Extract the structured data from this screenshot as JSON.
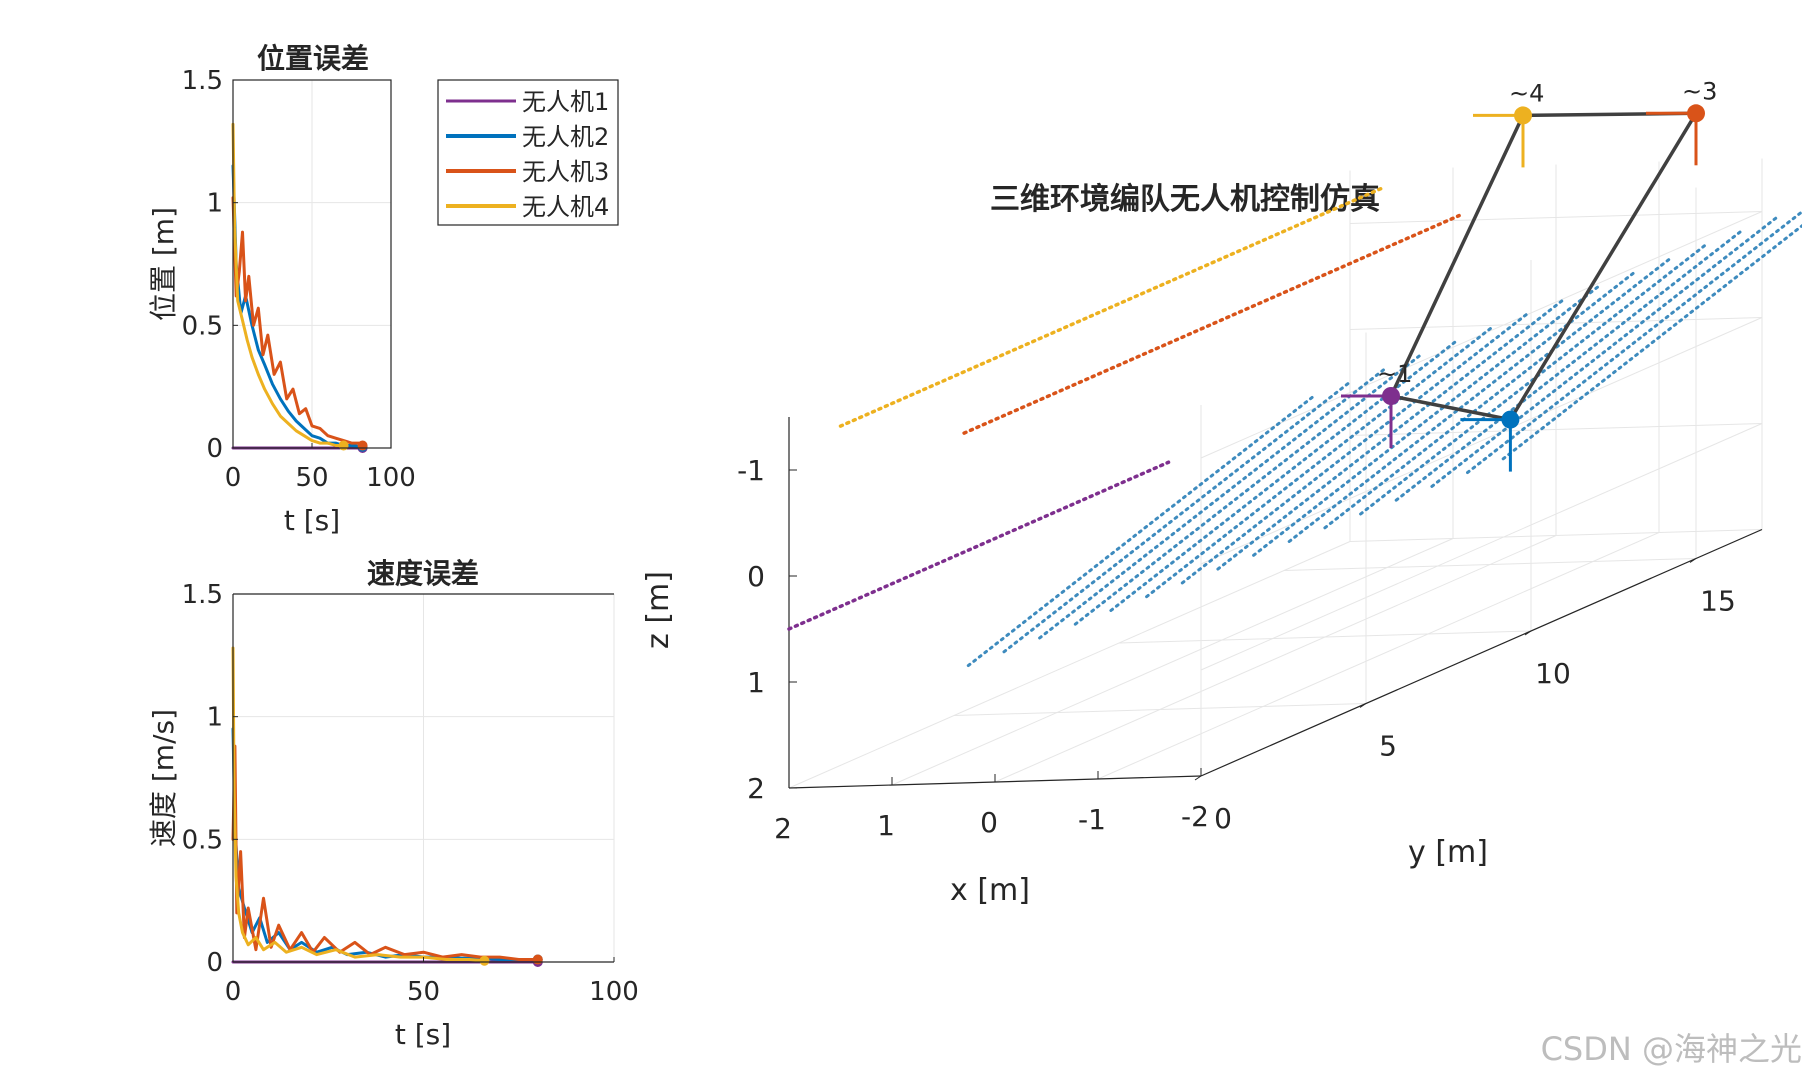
{
  "colors": {
    "uav1": "#7e2f8e",
    "uav2": "#0072bd",
    "uav3": "#d95319",
    "uav4": "#edb120",
    "link": "#404040",
    "wake": "#2a7fb8",
    "axis": "#262626",
    "grid": "#e6e6e6"
  },
  "watermark": "CSDN @海神之光",
  "chart_data": [
    {
      "id": "pos",
      "type": "line",
      "title": "位置误差",
      "xlabel": "t [s]",
      "ylabel": "位置 [m]",
      "xlim": [
        0,
        100
      ],
      "ylim": [
        0,
        1.5
      ],
      "xticks": [
        0,
        50,
        100
      ],
      "yticks": [
        0,
        0.5,
        1,
        1.5
      ],
      "grid": true,
      "legend": {
        "placement": "right-outside",
        "entries": [
          "无人机1",
          "无人机2",
          "无人机3",
          "无人机4"
        ]
      },
      "series": [
        {
          "name": "无人机1",
          "color_key": "uav1",
          "x": [
            0,
            10,
            20,
            30,
            40,
            50,
            60,
            70,
            82
          ],
          "y": [
            0,
            0,
            0,
            0,
            0,
            0,
            0,
            0,
            0
          ]
        },
        {
          "name": "无人机2",
          "color_key": "uav2",
          "x": [
            0,
            2,
            5,
            8,
            12,
            16,
            20,
            25,
            30,
            35,
            40,
            45,
            50,
            55,
            60,
            65,
            70,
            75,
            82
          ],
          "y": [
            1.15,
            0.75,
            0.55,
            0.62,
            0.5,
            0.4,
            0.34,
            0.26,
            0.2,
            0.15,
            0.11,
            0.08,
            0.05,
            0.04,
            0.02,
            0.02,
            0.01,
            0.01,
            0.005
          ]
        },
        {
          "name": "无人机3",
          "color_key": "uav3",
          "x": [
            0,
            2,
            4,
            6,
            8,
            10,
            13,
            16,
            19,
            22,
            26,
            30,
            34,
            38,
            42,
            46,
            50,
            55,
            60,
            65,
            70,
            75,
            80,
            82
          ],
          "y": [
            1.02,
            0.62,
            0.72,
            0.88,
            0.6,
            0.7,
            0.5,
            0.57,
            0.38,
            0.46,
            0.3,
            0.35,
            0.2,
            0.24,
            0.14,
            0.16,
            0.09,
            0.08,
            0.05,
            0.04,
            0.03,
            0.02,
            0.02,
            0.01
          ]
        },
        {
          "name": "无人机4",
          "color_key": "uav4",
          "x": [
            0,
            1,
            3,
            6,
            9,
            12,
            16,
            20,
            25,
            30,
            35,
            40,
            45,
            50,
            55,
            60,
            65,
            70
          ],
          "y": [
            1.32,
            0.9,
            0.6,
            0.52,
            0.44,
            0.37,
            0.3,
            0.24,
            0.18,
            0.13,
            0.1,
            0.07,
            0.05,
            0.03,
            0.02,
            0.02,
            0.01,
            0.01
          ]
        }
      ]
    },
    {
      "id": "vel",
      "type": "line",
      "title": "速度误差",
      "xlabel": "t [s]",
      "ylabel": "速度 [m/s]",
      "xlim": [
        0,
        100
      ],
      "ylim": [
        0,
        1.5
      ],
      "xticks": [
        0,
        50,
        100
      ],
      "yticks": [
        0,
        0.5,
        1,
        1.5
      ],
      "grid": true,
      "series": [
        {
          "name": "无人机1",
          "color_key": "uav1",
          "x": [
            0,
            10,
            20,
            40,
            60,
            80
          ],
          "y": [
            0,
            0,
            0,
            0,
            0,
            0
          ]
        },
        {
          "name": "无人机2",
          "color_key": "uav2",
          "x": [
            0,
            0.5,
            1.5,
            3,
            5,
            7,
            9,
            12,
            15,
            18,
            22,
            26,
            30,
            35,
            40,
            45,
            50,
            55,
            60,
            65,
            70,
            75,
            80
          ],
          "y": [
            0.95,
            0.55,
            0.3,
            0.22,
            0.12,
            0.18,
            0.08,
            0.12,
            0.05,
            0.08,
            0.04,
            0.06,
            0.03,
            0.04,
            0.02,
            0.03,
            0.02,
            0.02,
            0.015,
            0.015,
            0.01,
            0.01,
            0.01
          ]
        },
        {
          "name": "无人机3",
          "color_key": "uav3",
          "x": [
            0,
            0.5,
            1,
            2,
            3,
            4,
            6,
            8,
            10,
            12,
            15,
            18,
            21,
            24,
            28,
            32,
            36,
            40,
            45,
            50,
            55,
            60,
            65,
            70,
            75,
            80
          ],
          "y": [
            0.5,
            0.88,
            0.2,
            0.45,
            0.1,
            0.22,
            0.05,
            0.26,
            0.06,
            0.15,
            0.05,
            0.12,
            0.04,
            0.1,
            0.04,
            0.08,
            0.03,
            0.06,
            0.03,
            0.04,
            0.02,
            0.03,
            0.02,
            0.02,
            0.01,
            0.01
          ]
        },
        {
          "name": "无人机4",
          "color_key": "uav4",
          "x": [
            0,
            0.3,
            0.8,
            1.5,
            2.5,
            4,
            6,
            8,
            11,
            14,
            18,
            22,
            27,
            32,
            38,
            44,
            50,
            56,
            62,
            66
          ],
          "y": [
            1.28,
            0.7,
            0.35,
            0.2,
            0.12,
            0.07,
            0.1,
            0.05,
            0.08,
            0.04,
            0.06,
            0.03,
            0.05,
            0.02,
            0.03,
            0.02,
            0.02,
            0.01,
            0.01,
            0.005
          ]
        }
      ]
    },
    {
      "id": "sim3d",
      "type": "scatter",
      "projection": "3d",
      "title": "三维环境编队无人机控制仿真",
      "xlabel": "x [m]",
      "ylabel": "y [m]",
      "zlabel": "z [m]",
      "xlim": [
        -2,
        2
      ],
      "ylim": [
        0,
        17
      ],
      "zlim": [
        -1.5,
        2
      ],
      "z_reversed": true,
      "xticks": [
        2,
        1,
        0,
        -1,
        -2
      ],
      "yticks": [
        0,
        5,
        10,
        15
      ],
      "zticks": [
        -1,
        0,
        1,
        2
      ],
      "grid": true,
      "drones": [
        {
          "label": "~1",
          "color_key": "uav1",
          "x": 0,
          "y": 12,
          "z": 0
        },
        {
          "label": "",
          "color_key": "uav2",
          "x": -1.8,
          "y": 10,
          "z": 0
        },
        {
          "label": "~3",
          "color_key": "uav3",
          "x": -2,
          "y": 15,
          "z": -2.2
        },
        {
          "label": "~4",
          "color_key": "uav4",
          "x": 0,
          "y": 16,
          "z": -2.1
        }
      ],
      "formation_links": [
        [
          3,
          2
        ],
        [
          3,
          0
        ],
        [
          2,
          1
        ],
        [
          0,
          1
        ]
      ],
      "trails": [
        {
          "color_key": "uav1",
          "x": 2,
          "y0": 0,
          "y1": 11.5,
          "z": 0.5
        },
        {
          "color_key": "uav3",
          "x": 0.3,
          "y0": 0,
          "y1": 15,
          "z": -1.3
        },
        {
          "color_key": "uav4",
          "x": 1.5,
          "y0": 0,
          "y1": 16.5,
          "z": -1.4
        }
      ]
    }
  ]
}
